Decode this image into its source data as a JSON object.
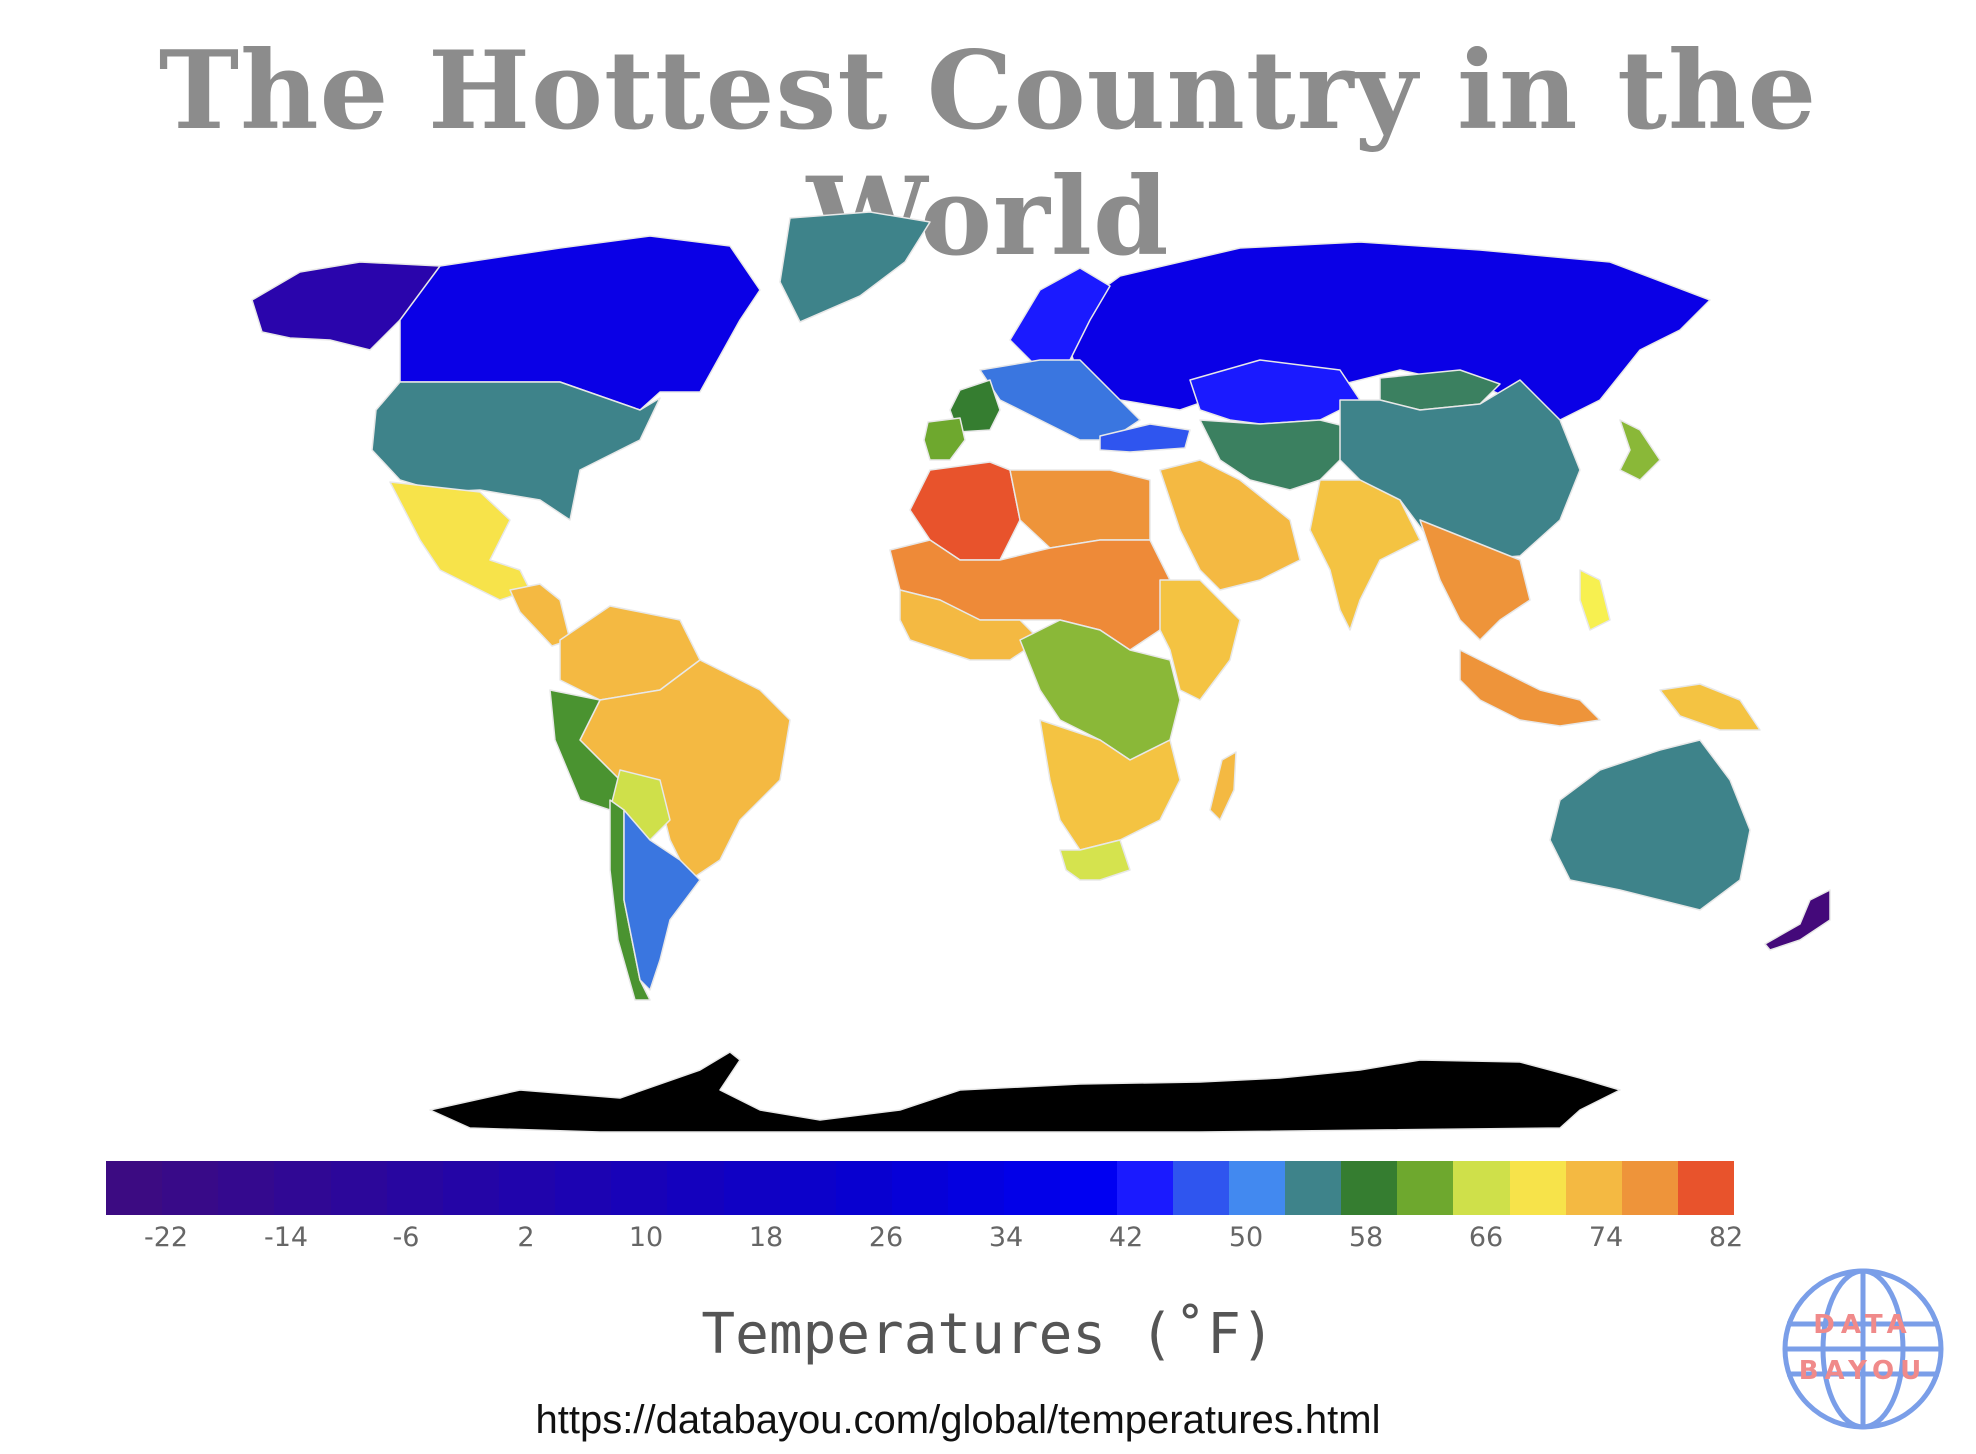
{
  "title": "The Hottest Country in the World",
  "legend": {
    "label": "Temperatures (˚F)",
    "ticks": [
      "-22",
      "-14",
      "-6",
      "2",
      "10",
      "18",
      "26",
      "34",
      "42",
      "50",
      "58",
      "66",
      "74",
      "82"
    ],
    "colors": [
      "#3c0b82",
      "#380a88",
      "#34098e",
      "#300894",
      "#2c079a",
      "#2806a0",
      "#2405a6",
      "#2004ac",
      "#1c03b2",
      "#1802b8",
      "#1401be",
      "#1001c4",
      "#0c01ca",
      "#0800d0",
      "#0600d8",
      "#0400e0",
      "#0200e8",
      "#0000f2",
      "#1a1aff",
      "#2f55ef",
      "#4289f0",
      "#3e838a",
      "#357d30",
      "#6ea82e",
      "#cfe04a",
      "#f7e34a",
      "#f4b942",
      "#ee943a",
      "#e8532c"
    ]
  },
  "url": "https://databayou.com/global/temperatures.html",
  "logo": {
    "line1": "DATA",
    "line2": "BAYOU",
    "color": "#f08a8a",
    "globe_color": "#7a9ee8"
  },
  "map": {
    "ocean": "#ffffff",
    "regions": [
      {
        "name": "Greenland",
        "color": "#2a05ac"
      },
      {
        "name": "Canada",
        "color": "#0a00e6"
      },
      {
        "name": "Alaska",
        "color": "#3e838a"
      },
      {
        "name": "United States",
        "color": "#3e838a"
      },
      {
        "name": "Mexico",
        "color": "#f7e34a"
      },
      {
        "name": "Central America",
        "color": "#f4b942"
      },
      {
        "name": "Colombia/Venezuela",
        "color": "#f4b942"
      },
      {
        "name": "Brazil",
        "color": "#f4b942"
      },
      {
        "name": "Peru",
        "color": "#4a9330"
      },
      {
        "name": "Bolivia",
        "color": "#cfe04a"
      },
      {
        "name": "Argentina",
        "color": "#4a9330"
      },
      {
        "name": "Chile",
        "color": "#3a76e0"
      },
      {
        "name": "Russia",
        "color": "#0a00e6"
      },
      {
        "name": "Scandinavia",
        "color": "#1a1aff"
      },
      {
        "name": "Europe",
        "color": "#3a76e0"
      },
      {
        "name": "France",
        "color": "#357d30"
      },
      {
        "name": "Spain",
        "color": "#6ea82e"
      },
      {
        "name": "Kazakhstan",
        "color": "#2f55ef"
      },
      {
        "name": "Mongolia",
        "color": "#1a1aff"
      },
      {
        "name": "China",
        "color": "#3b8060"
      },
      {
        "name": "Japan",
        "color": "#3b8060"
      },
      {
        "name": "Turkey",
        "color": "#3e838a"
      },
      {
        "name": "Central Asia",
        "color": "#8ab838"
      },
      {
        "name": "India",
        "color": "#f4c342"
      },
      {
        "name": "Southeast Asia",
        "color": "#ee943a"
      },
      {
        "name": "Indonesia",
        "color": "#ee943a"
      },
      {
        "name": "North Africa",
        "color": "#f7f050"
      },
      {
        "name": "Libya/Egypt",
        "color": "#f4c342"
      },
      {
        "name": "Sahel",
        "color": "#e8532c"
      },
      {
        "name": "West Africa",
        "color": "#ee943a"
      },
      {
        "name": "Arabia",
        "color": "#ee8a38"
      },
      {
        "name": "East Africa",
        "color": "#f4b942"
      },
      {
        "name": "Central Africa",
        "color": "#f4b942"
      },
      {
        "name": "Southern Africa",
        "color": "#f4c342"
      },
      {
        "name": "South Africa",
        "color": "#8ab838"
      },
      {
        "name": "Madagascar",
        "color": "#f4c342"
      },
      {
        "name": "Australia",
        "color": "#d5e34e"
      },
      {
        "name": "New Guinea",
        "color": "#f4b942"
      },
      {
        "name": "New Zealand",
        "color": "#3e838a"
      },
      {
        "name": "Antarctica",
        "color": "#44097a"
      }
    ]
  }
}
